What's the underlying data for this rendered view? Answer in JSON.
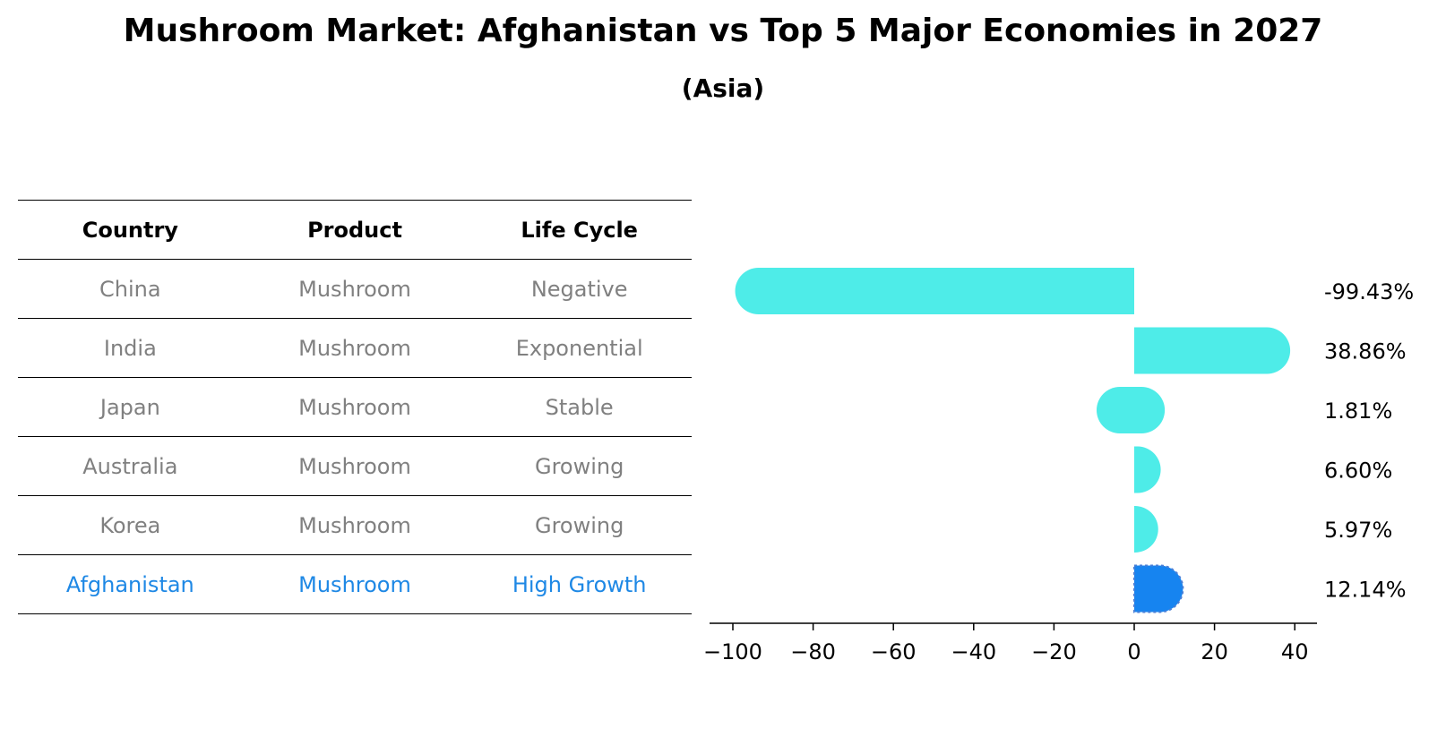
{
  "title": "Mushroom Market: Afghanistan vs Top 5 Major Economies in 2027",
  "subtitle": "(Asia)",
  "table": {
    "headers": [
      "Country",
      "Product",
      "Life Cycle"
    ],
    "rows": [
      [
        "China",
        "Mushroom",
        "Negative"
      ],
      [
        "India",
        "Mushroom",
        "Exponential"
      ],
      [
        "Japan",
        "Mushroom",
        "Stable"
      ],
      [
        "Australia",
        "Mushroom",
        "Growing"
      ],
      [
        "Korea",
        "Mushroom",
        "Growing"
      ],
      [
        "Afghanistan",
        "Mushroom",
        "High Growth"
      ]
    ],
    "highlight_row": 5,
    "colors": {
      "text": "#808080",
      "highlight": "#1e88e5",
      "header": "#000000"
    }
  },
  "chart_data": {
    "type": "bar",
    "orientation": "horizontal",
    "categories": [
      "China",
      "India",
      "Japan",
      "Australia",
      "Korea",
      "Afghanistan"
    ],
    "values": [
      -99.43,
      38.86,
      1.81,
      6.6,
      5.97,
      12.14
    ],
    "value_labels": [
      "-99.43%",
      "38.86%",
      "1.81%",
      "6.60%",
      "5.97%",
      "12.14%"
    ],
    "xlim": [
      -105,
      45
    ],
    "xticks": [
      -100,
      -80,
      -60,
      -40,
      -20,
      0,
      20,
      40
    ],
    "xtick_labels": [
      "−100",
      "−80",
      "−60",
      "−40",
      "−20",
      "0",
      "20",
      "40"
    ],
    "bar_color": "#4eece8",
    "highlight_color": "#1684f0",
    "highlight_index": 5
  }
}
